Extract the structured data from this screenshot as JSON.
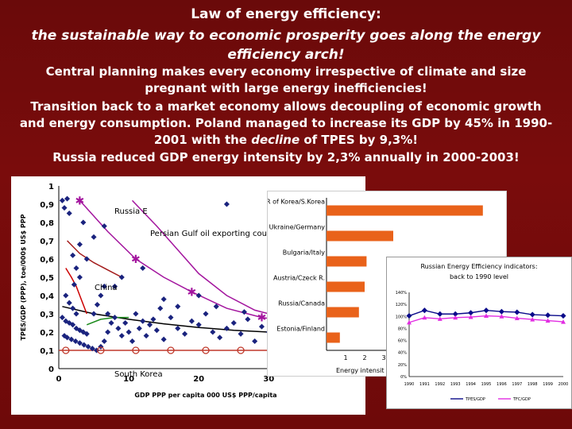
{
  "slide": {
    "title": "Law of energy efficiency:",
    "subtitle": "the sustainable way to economic prosperity goes along the energy efficiency arch!",
    "para1": "Central planning makes every economy irrespective of climate and size pregnant with large energy inefficiencies!",
    "para2_a": "Transition back to a market economy allows decoupling of economic growth and energy consumption. Poland managed to increase its GDP by 45% in 1990-2001 with the ",
    "para2_em": "decline",
    "para2_b": " of TPES by 9,3%!",
    "para3": "Russia reduced GDP energy intensity by 2,3% annually in 2000-2003!"
  },
  "chart_data": [
    {
      "type": "scatter",
      "xlabel": "GDP PPP per capita 000 US$ PPP/capita",
      "ylabel": "TPES/GDP (PPP), toe/000$ US$ PPP",
      "xticks": [
        "0",
        "10",
        "20",
        "30"
      ],
      "yticks": [
        "0",
        "0,1",
        "0,2",
        "0,3",
        "0,4",
        "0,5",
        "0,6",
        "0,7",
        "0,8",
        "0,9",
        "1"
      ],
      "xlim": [
        0,
        42
      ],
      "ylim": [
        0,
        1
      ],
      "annotations": [
        "Russia E",
        "Persian Gulf oil exporting countries",
        "China",
        "South Korea"
      ],
      "points": [
        [
          0.5,
          0.92
        ],
        [
          0.8,
          0.88
        ],
        [
          1.2,
          0.93
        ],
        [
          1.5,
          0.85
        ],
        [
          2.0,
          0.62
        ],
        [
          2.5,
          0.55
        ],
        [
          3.0,
          0.5
        ],
        [
          2.2,
          0.46
        ],
        [
          1.0,
          0.4
        ],
        [
          1.5,
          0.36
        ],
        [
          2.0,
          0.33
        ],
        [
          2.5,
          0.3
        ],
        [
          0.5,
          0.28
        ],
        [
          1.0,
          0.26
        ],
        [
          1.5,
          0.25
        ],
        [
          2.0,
          0.24
        ],
        [
          2.5,
          0.22
        ],
        [
          3.0,
          0.21
        ],
        [
          3.5,
          0.2
        ],
        [
          4.0,
          0.19
        ],
        [
          0.8,
          0.18
        ],
        [
          1.2,
          0.17
        ],
        [
          1.8,
          0.16
        ],
        [
          2.4,
          0.15
        ],
        [
          3.0,
          0.14
        ],
        [
          3.6,
          0.13
        ],
        [
          4.2,
          0.12
        ],
        [
          4.8,
          0.11
        ],
        [
          5.4,
          0.1
        ],
        [
          6.0,
          0.12
        ],
        [
          6.5,
          0.15
        ],
        [
          7.0,
          0.2
        ],
        [
          7.5,
          0.25
        ],
        [
          5.0,
          0.3
        ],
        [
          5.5,
          0.35
        ],
        [
          6.0,
          0.4
        ],
        [
          6.5,
          0.45
        ],
        [
          7.0,
          0.3
        ],
        [
          8.0,
          0.28
        ],
        [
          8.5,
          0.22
        ],
        [
          9.0,
          0.18
        ],
        [
          9.5,
          0.25
        ],
        [
          10.0,
          0.2
        ],
        [
          10.5,
          0.15
        ],
        [
          11.0,
          0.3
        ],
        [
          11.5,
          0.22
        ],
        [
          12.0,
          0.26
        ],
        [
          12.5,
          0.18
        ],
        [
          13.0,
          0.24
        ],
        [
          13.5,
          0.27
        ],
        [
          14.0,
          0.21
        ],
        [
          14.5,
          0.33
        ],
        [
          15.0,
          0.16
        ],
        [
          16.0,
          0.28
        ],
        [
          17.0,
          0.22
        ],
        [
          18.0,
          0.19
        ],
        [
          19.0,
          0.26
        ],
        [
          20.0,
          0.24
        ],
        [
          21.0,
          0.3
        ],
        [
          22.0,
          0.2
        ],
        [
          23.0,
          0.17
        ],
        [
          24.0,
          0.22
        ],
        [
          25.0,
          0.25
        ],
        [
          26.0,
          0.19
        ],
        [
          27.0,
          0.27
        ],
        [
          28.0,
          0.15
        ],
        [
          29.0,
          0.23
        ],
        [
          30.0,
          0.2
        ],
        [
          31.0,
          0.26
        ],
        [
          33.0,
          0.22
        ],
        [
          35.0,
          0.18
        ],
        [
          8.0,
          0.45
        ],
        [
          9.0,
          0.5
        ],
        [
          4.0,
          0.6
        ],
        [
          5.0,
          0.72
        ],
        [
          6.5,
          0.78
        ],
        [
          3.5,
          0.8
        ],
        [
          15.0,
          0.38
        ],
        [
          17.0,
          0.34
        ],
        [
          20.0,
          0.4
        ],
        [
          24.0,
          0.9
        ],
        [
          12.0,
          0.55
        ],
        [
          3.0,
          0.68
        ],
        [
          22.5,
          0.34
        ],
        [
          26.5,
          0.31
        ]
      ],
      "fit_curve": [
        [
          0.5,
          0.34
        ],
        [
          5,
          0.3
        ],
        [
          10,
          0.27
        ],
        [
          15,
          0.245
        ],
        [
          20,
          0.225
        ],
        [
          25,
          0.21
        ],
        [
          30,
          0.2
        ],
        [
          35,
          0.19
        ],
        [
          40,
          0.18
        ]
      ],
      "russia_path": [
        [
          1.2,
          0.7
        ],
        [
          3,
          0.63
        ],
        [
          5,
          0.58
        ],
        [
          7,
          0.54
        ],
        [
          9,
          0.5
        ]
      ],
      "persian_curve": [
        [
          10.5,
          0.92
        ],
        [
          14,
          0.78
        ],
        [
          17,
          0.65
        ],
        [
          20,
          0.52
        ],
        [
          24,
          0.4
        ],
        [
          28,
          0.32
        ],
        [
          33,
          0.27
        ],
        [
          38,
          0.24
        ]
      ],
      "china_path": [
        [
          1.0,
          0.55
        ],
        [
          1.8,
          0.5
        ],
        [
          2.5,
          0.45
        ],
        [
          3.2,
          0.38
        ],
        [
          4.0,
          0.3
        ]
      ],
      "south_korea_path": [
        [
          4,
          0.24
        ],
        [
          6,
          0.27
        ],
        [
          8,
          0.28
        ],
        [
          10,
          0.28
        ]
      ],
      "baseline_circles": [
        [
          1,
          0.1
        ],
        [
          6,
          0.1
        ],
        [
          11,
          0.1
        ],
        [
          16,
          0.1
        ],
        [
          21,
          0.1
        ],
        [
          26,
          0.1
        ],
        [
          31,
          0.1
        ],
        [
          36,
          0.1
        ]
      ],
      "magenta_curve": [
        [
          3,
          0.92
        ],
        [
          7,
          0.75
        ],
        [
          11,
          0.6
        ],
        [
          15,
          0.5
        ],
        [
          19,
          0.42
        ],
        [
          24,
          0.33
        ],
        [
          29,
          0.28
        ],
        [
          33,
          0.26
        ]
      ],
      "magenta_stars": [
        [
          3,
          0.92
        ],
        [
          11,
          0.6
        ],
        [
          19,
          0.42
        ],
        [
          29,
          0.28
        ]
      ]
    },
    {
      "type": "bar",
      "orientation": "horizontal",
      "categories": [
        "DPR of Korea/S.Korea",
        "Ukraine/Germany",
        "Bulgaria/Italy",
        "Austria/Czeck R.",
        "Russia/Canada",
        "Estonia/Finland"
      ],
      "values": [
        8.2,
        3.5,
        2.1,
        2.0,
        1.7,
        0.7
      ],
      "xticks": [
        "1",
        "2",
        "3"
      ],
      "xlim": [
        0,
        9
      ],
      "xlabel": "Energy intensit",
      "color": "#e9621a"
    },
    {
      "type": "line",
      "title": "Russian Energy Efficiency indicators: back to 1990 level",
      "categories": [
        "1990",
        "1991",
        "1992",
        "1993",
        "1994",
        "1995",
        "1996",
        "1997",
        "1998",
        "1999",
        "2000"
      ],
      "series": [
        {
          "name": "TPES/GDP",
          "color": "#0a0a8a",
          "values": [
            101,
            110,
            104,
            104,
            106,
            110,
            108,
            107,
            103,
            102,
            101
          ]
        },
        {
          "name": "TFC/GDP",
          "color": "#e22ce2",
          "values": [
            90,
            98,
            96,
            98,
            99,
            101,
            100,
            97,
            95,
            93,
            91
          ]
        }
      ],
      "ylim": [
        0,
        140
      ],
      "yticks": [
        "0%",
        "20%",
        "40%",
        "60%",
        "80%",
        "100%",
        "120%",
        "140%"
      ],
      "legend_position": "bottom"
    }
  ]
}
